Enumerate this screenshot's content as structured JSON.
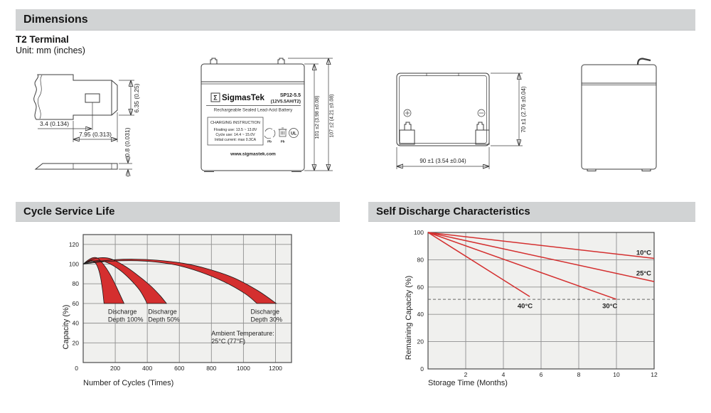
{
  "colors": {
    "header_bg": "#d1d3d4",
    "chart_red": "#d42f2f",
    "plot_bg": "#f0f0ee",
    "grid": "#8f8f8f",
    "plot_border": "#4a4a4a",
    "terminal_red": "#e8232a",
    "terminal_black": "#262626"
  },
  "sections": {
    "dimensions": {
      "title": "Dimensions",
      "subtitle": "T2 Terminal",
      "unit_note": "Unit: mm (inches)"
    },
    "cycle_service_life": {
      "title": "Cycle Service Life"
    },
    "self_discharge": {
      "title": "Self Discharge Characteristics"
    }
  },
  "terminal_drawing": {
    "dim_hole_offset": "3.4 (0.134)",
    "dim_tab_length": "7.95 (0.313)",
    "dim_tab_width": "6.35 (0.25)",
    "dim_thickness": "0.8 (0.031)"
  },
  "battery_front": {
    "logo_sigma": "Σ",
    "brand": "SigmasTek",
    "model": "SP12-5.5",
    "spec": "(12V5.5AH/T2)",
    "type_line": "Rechargeable Sealed Lead-Acid Battery",
    "charging_title": "CHARGING INSTRUCTION",
    "charging_lines": [
      "Floating use: 13.5 ~ 13.8V",
      "Cycle use: 14.4 ~ 15.0V",
      "Initial current: max 0.3CA"
    ],
    "pb_label": "Pb",
    "ul_label": "UL",
    "website": "www.sigmastek.com",
    "dim_body_height": "101 ±2 (3.98 ±0.08)",
    "dim_total_height": "107 ±2 (4.21 ±0.08)"
  },
  "battery_top": {
    "dim_width": "90 ±1 (3.54 ±0.04)",
    "dim_depth": "70 ±1 (2.76 ±0.04)"
  },
  "chart_data": [
    {
      "type": "area",
      "title": "Cycle Service Life",
      "xlabel": "Number of Cycles (Times)",
      "ylabel": "Capacity (%)",
      "xlim": [
        0,
        1300
      ],
      "ylim": [
        0,
        130
      ],
      "xticks": [
        200,
        400,
        600,
        800,
        1000,
        1200
      ],
      "yticks": [
        0,
        20,
        40,
        60,
        80,
        100,
        120
      ],
      "origin_label": "0",
      "grid": true,
      "bands": [
        {
          "name": "Discharge Depth 100%",
          "upper": [
            [
              0,
              100
            ],
            [
              30,
              104
            ],
            [
              60,
              106.5
            ],
            [
              90,
              106
            ],
            [
              130,
              99
            ],
            [
              170,
              89
            ],
            [
              210,
              76
            ],
            [
              255,
              60
            ]
          ],
          "lower": [
            [
              0,
              100
            ],
            [
              25,
              102
            ],
            [
              50,
              103.5
            ],
            [
              75,
              101.5
            ],
            [
              95,
              95
            ],
            [
              110,
              85
            ],
            [
              122,
              72
            ],
            [
              130,
              60
            ]
          ]
        },
        {
          "name": "Discharge Depth 50%",
          "upper": [
            [
              0,
              100
            ],
            [
              50,
              104.5
            ],
            [
              110,
              106.5
            ],
            [
              170,
              105.5
            ],
            [
              250,
              99
            ],
            [
              330,
              90
            ],
            [
              420,
              78
            ],
            [
              480,
              68
            ],
            [
              520,
              60
            ]
          ],
          "lower": [
            [
              0,
              100
            ],
            [
              45,
              102.5
            ],
            [
              95,
              103.5
            ],
            [
              150,
              101.5
            ],
            [
              220,
              95
            ],
            [
              290,
              85
            ],
            [
              350,
              74
            ],
            [
              390,
              63
            ],
            [
              396,
              60
            ]
          ]
        },
        {
          "name": "Discharge Depth 30%",
          "upper": [
            [
              0,
              100
            ],
            [
              80,
              102.5
            ],
            [
              200,
              104.5
            ],
            [
              320,
              105
            ],
            [
              460,
              104
            ],
            [
              620,
              101
            ],
            [
              780,
              95
            ],
            [
              940,
              86
            ],
            [
              1090,
              73
            ],
            [
              1205,
              60
            ]
          ],
          "lower": [
            [
              0,
              100
            ],
            [
              70,
              101.5
            ],
            [
              180,
              103
            ],
            [
              300,
              103.5
            ],
            [
              430,
              102.5
            ],
            [
              580,
              99
            ],
            [
              730,
              92
            ],
            [
              880,
              82
            ],
            [
              1010,
              70
            ],
            [
              1085,
              60
            ]
          ]
        }
      ],
      "annotations": [
        {
          "lines": [
            "Discharge",
            "Depth 100%"
          ],
          "x": 155,
          "y": 49.5
        },
        {
          "lines": [
            "Discharge",
            "Depth 50%"
          ],
          "x": 405,
          "y": 49.5
        },
        {
          "lines": [
            "Discharge",
            "Depth 30%"
          ],
          "x": 1045,
          "y": 49.5
        },
        {
          "lines": [
            "Ambient Temperature:",
            "25°C (77°F)"
          ],
          "x": 800,
          "y": 27.5
        }
      ]
    },
    {
      "type": "line",
      "title": "Self Discharge Characteristics",
      "xlabel": "Storage Time (Months)",
      "ylabel": "Remaining Capacity (%)",
      "xlim": [
        0,
        12
      ],
      "ylim": [
        0,
        100
      ],
      "xticks": [
        2,
        4,
        6,
        8,
        10,
        12
      ],
      "yticks": [
        0,
        20,
        40,
        60,
        80,
        100
      ],
      "grid": true,
      "series": [
        {
          "name": "10°C",
          "points": [
            [
              0,
              100
            ],
            [
              12,
              81
            ]
          ]
        },
        {
          "name": "25°C",
          "points": [
            [
              0,
              100
            ],
            [
              12,
              64
            ]
          ]
        },
        {
          "name": "30°C",
          "points": [
            [
              0,
              100
            ],
            [
              10,
              51
            ]
          ]
        },
        {
          "name": "40°C",
          "points": [
            [
              0,
              100
            ],
            [
              5.4,
              53
            ]
          ]
        }
      ],
      "dashed_threshold_y": 51,
      "labels": [
        {
          "text": "10°C",
          "x": 11.05,
          "y": 83.5
        },
        {
          "text": "25°C",
          "x": 11.05,
          "y": 68.5
        },
        {
          "text": "40°C",
          "x": 4.75,
          "y": 44.5
        },
        {
          "text": "30°C",
          "x": 9.25,
          "y": 44.5
        }
      ]
    }
  ]
}
